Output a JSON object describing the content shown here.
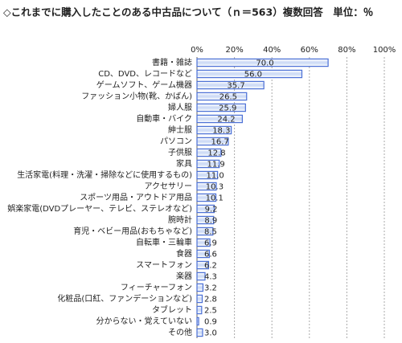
{
  "chart_data": {
    "type": "barh",
    "title": "◇これまでに購入したことのある中古品について（ｎ＝563）複数回答　単位：％",
    "categories": [
      "書籍・雑誌",
      "CD、DVD、レコードなど",
      "ゲームソフト、ゲーム機器",
      "ファッション小物(靴、かばん)",
      "婦人服",
      "自動車・バイク",
      "紳士服",
      "パソコン",
      "子供服",
      "家具",
      "生活家電(料理・洗濯・掃除などに使用するもの)",
      "アクセサリー",
      "スポーツ用品・アウトドア用品",
      "娯楽家電(DVDプレーヤー、テレビ、ステレオなど)",
      "腕時計",
      "育児・ベビー用品(おもちゃなど)",
      "自転車・三輪車",
      "食器",
      "スマートフォン",
      "楽器",
      "フィーチャーフォン",
      "化粧品(口紅、ファンデーションなど)",
      "タブレット",
      "分からない・覚えていない",
      "その他"
    ],
    "values": [
      70.0,
      56.0,
      35.7,
      26.5,
      25.9,
      24.2,
      18.3,
      16.7,
      12.8,
      11.9,
      11.0,
      10.3,
      10.1,
      9.2,
      8.9,
      8.5,
      6.9,
      6.6,
      6.2,
      4.3,
      3.2,
      2.8,
      2.5,
      0.9,
      3.0
    ],
    "value_labels": [
      "70.0",
      "56.0",
      "35.7",
      "26.5",
      "25.9",
      "24.2",
      "18.3",
      "16.7",
      "12.8",
      "11.9",
      "11.0",
      "10.3",
      "10.1",
      "9.2",
      "8.9",
      "8.5",
      "6.9",
      "6.6",
      "6.2",
      "4.3",
      "3.2",
      "2.8",
      "2.5",
      "0.9",
      "3.0"
    ],
    "color": "#4a6fd6",
    "xlim": [
      0,
      100
    ],
    "xticks": [
      {
        "value": 0,
        "label": "0%"
      },
      {
        "value": 20,
        "label": "20%"
      },
      {
        "value": 40,
        "label": "40%"
      },
      {
        "value": 60,
        "label": "60%"
      },
      {
        "value": 80,
        "label": "80%"
      },
      {
        "value": 100,
        "label": "100%"
      }
    ],
    "grid": true
  }
}
